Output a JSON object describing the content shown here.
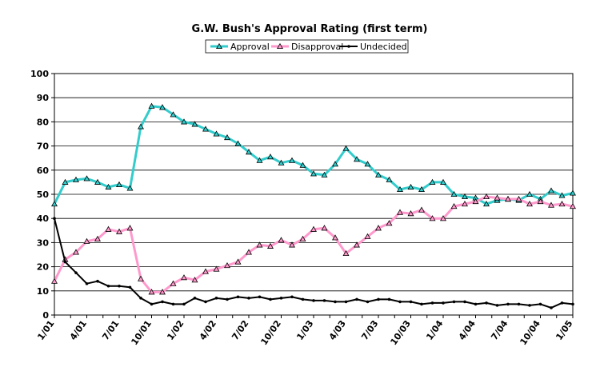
{
  "chart_data": {
    "type": "line",
    "title": "G.W. Bush's Approval Rating (first term)",
    "xlabel": "",
    "ylabel": "",
    "ylim": [
      0,
      100
    ],
    "yticks": [
      0,
      10,
      20,
      30,
      40,
      50,
      60,
      70,
      80,
      90,
      100
    ],
    "xticks": [
      {
        "i": 0,
        "label": "1/01"
      },
      {
        "i": 6,
        "label": "4/01"
      },
      {
        "i": 12,
        "label": "7/01"
      },
      {
        "i": 18,
        "label": "10/01"
      },
      {
        "i": 24,
        "label": "1/02"
      },
      {
        "i": 30,
        "label": "4/02"
      },
      {
        "i": 36,
        "label": "7/02"
      },
      {
        "i": 42,
        "label": "10/02"
      },
      {
        "i": 48,
        "label": "1/03"
      },
      {
        "i": 54,
        "label": "4/03"
      },
      {
        "i": 60,
        "label": "7/03"
      },
      {
        "i": 66,
        "label": "10/03"
      },
      {
        "i": 72,
        "label": "1/04"
      },
      {
        "i": 78,
        "label": "4/04"
      },
      {
        "i": 84,
        "label": "7/04"
      },
      {
        "i": 90,
        "label": "10/04"
      },
      {
        "i": 96,
        "label": "1/05"
      }
    ],
    "grid": "horizontal",
    "legend_position": "top-center",
    "series": [
      {
        "name": "Approval",
        "color": "#33CCCC",
        "marker": "triangle",
        "points": [
          [
            0,
            46
          ],
          [
            2,
            55
          ],
          [
            4,
            56
          ],
          [
            6,
            56.5
          ],
          [
            8,
            55
          ],
          [
            10,
            53
          ],
          [
            12,
            54
          ],
          [
            14,
            52.5
          ],
          [
            16,
            78
          ],
          [
            18,
            86.5
          ],
          [
            20,
            86
          ],
          [
            22,
            83
          ],
          [
            24,
            80
          ],
          [
            26,
            79
          ],
          [
            28,
            77
          ],
          [
            30,
            75
          ],
          [
            32,
            73.5
          ],
          [
            34,
            71
          ],
          [
            36,
            67.5
          ],
          [
            38,
            64
          ],
          [
            40,
            65.5
          ],
          [
            42,
            63
          ],
          [
            44,
            64
          ],
          [
            46,
            62
          ],
          [
            48,
            58.5
          ],
          [
            50,
            58
          ],
          [
            52,
            62.5
          ],
          [
            54,
            69
          ],
          [
            56,
            64.5
          ],
          [
            58,
            62.5
          ],
          [
            60,
            58
          ],
          [
            62,
            56
          ],
          [
            64,
            52
          ],
          [
            66,
            53
          ],
          [
            68,
            52
          ],
          [
            70,
            55
          ],
          [
            72,
            55
          ],
          [
            74,
            50
          ],
          [
            76,
            49
          ],
          [
            78,
            48.5
          ],
          [
            80,
            46
          ],
          [
            82,
            47.5
          ],
          [
            84,
            48
          ],
          [
            86,
            47.5
          ],
          [
            88,
            50
          ],
          [
            90,
            48
          ],
          [
            92,
            51.5
          ],
          [
            94,
            49.5
          ],
          [
            96,
            50.5
          ]
        ]
      },
      {
        "name": "Disapproval",
        "color": "#FF99CC",
        "marker": "triangle",
        "points": [
          [
            0,
            14
          ],
          [
            2,
            23
          ],
          [
            4,
            26
          ],
          [
            6,
            30.5
          ],
          [
            8,
            31.5
          ],
          [
            10,
            35.5
          ],
          [
            12,
            34.5
          ],
          [
            14,
            36
          ],
          [
            16,
            15
          ],
          [
            18,
            9.5
          ],
          [
            20,
            9.5
          ],
          [
            22,
            13
          ],
          [
            24,
            15.5
          ],
          [
            26,
            14.5
          ],
          [
            28,
            18
          ],
          [
            30,
            19
          ],
          [
            32,
            20.5
          ],
          [
            34,
            22
          ],
          [
            36,
            26
          ],
          [
            38,
            29
          ],
          [
            40,
            28.5
          ],
          [
            42,
            31
          ],
          [
            44,
            29
          ],
          [
            46,
            31.5
          ],
          [
            48,
            35.5
          ],
          [
            50,
            36
          ],
          [
            52,
            32
          ],
          [
            54,
            25.5
          ],
          [
            56,
            29
          ],
          [
            58,
            32.5
          ],
          [
            60,
            36
          ],
          [
            62,
            38
          ],
          [
            64,
            42.5
          ],
          [
            66,
            42
          ],
          [
            68,
            43.5
          ],
          [
            70,
            40
          ],
          [
            72,
            40
          ],
          [
            74,
            45
          ],
          [
            76,
            46
          ],
          [
            78,
            47
          ],
          [
            80,
            49
          ],
          [
            82,
            48.5
          ],
          [
            84,
            48
          ],
          [
            86,
            48
          ],
          [
            88,
            46
          ],
          [
            90,
            47
          ],
          [
            92,
            45.5
          ],
          [
            94,
            46
          ],
          [
            96,
            45
          ]
        ]
      },
      {
        "name": "Undecided",
        "color": "#000000",
        "marker": "dot",
        "points": [
          [
            0,
            40
          ],
          [
            2,
            22
          ],
          [
            4,
            17.5
          ],
          [
            6,
            13
          ],
          [
            8,
            14
          ],
          [
            10,
            12
          ],
          [
            12,
            12
          ],
          [
            14,
            11.5
          ],
          [
            16,
            7
          ],
          [
            18,
            4.5
          ],
          [
            20,
            5.5
          ],
          [
            22,
            4.5
          ],
          [
            24,
            4.5
          ],
          [
            26,
            7
          ],
          [
            28,
            5.5
          ],
          [
            30,
            7
          ],
          [
            32,
            6.5
          ],
          [
            34,
            7.5
          ],
          [
            36,
            7
          ],
          [
            38,
            7.5
          ],
          [
            40,
            6.5
          ],
          [
            42,
            7
          ],
          [
            44,
            7.5
          ],
          [
            46,
            6.5
          ],
          [
            48,
            6
          ],
          [
            50,
            6
          ],
          [
            52,
            5.5
          ],
          [
            54,
            5.5
          ],
          [
            56,
            6.5
          ],
          [
            58,
            5.5
          ],
          [
            60,
            6.5
          ],
          [
            62,
            6.5
          ],
          [
            64,
            5.5
          ],
          [
            66,
            5.5
          ],
          [
            68,
            4.5
          ],
          [
            70,
            5
          ],
          [
            72,
            5
          ],
          [
            74,
            5.5
          ],
          [
            76,
            5.5
          ],
          [
            78,
            4.5
          ],
          [
            80,
            5
          ],
          [
            82,
            4
          ],
          [
            84,
            4.5
          ],
          [
            86,
            4.5
          ],
          [
            88,
            4
          ],
          [
            90,
            4.5
          ],
          [
            92,
            3
          ],
          [
            94,
            5
          ],
          [
            96,
            4.5
          ]
        ]
      }
    ]
  }
}
